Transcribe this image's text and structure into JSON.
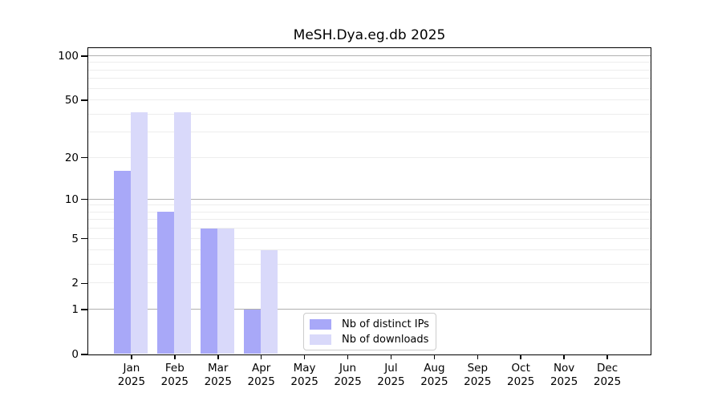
{
  "chart_data": {
    "type": "bar",
    "title": "MeSH.Dya.eg.db 2025",
    "categories": [
      "Jan",
      "Feb",
      "Mar",
      "Apr",
      "May",
      "Jun",
      "Jul",
      "Aug",
      "Sep",
      "Oct",
      "Nov",
      "Dec"
    ],
    "year": "2025",
    "series": [
      {
        "name": "Nb of distinct IPs",
        "color": "#a8a8f8",
        "values": [
          16,
          8,
          6,
          1,
          0,
          0,
          0,
          0,
          0,
          0,
          0,
          0
        ]
      },
      {
        "name": "Nb of downloads",
        "color": "#d9d9fa",
        "values": [
          41,
          41,
          6,
          4,
          0,
          0,
          0,
          0,
          0,
          0,
          0,
          0
        ]
      }
    ],
    "yticks": [
      0,
      1,
      2,
      5,
      10,
      20,
      50,
      100
    ],
    "major_gridlines": [
      1,
      10,
      100
    ],
    "minor_gridlines": [
      2,
      3,
      4,
      5,
      6,
      7,
      8,
      9,
      20,
      30,
      40,
      50,
      60,
      70,
      80,
      90
    ],
    "yscale": "log1p",
    "ylim": [
      0,
      113
    ],
    "grid": true,
    "legend_position": "lower center",
    "colors": {
      "major_grid": "#b0b0b0",
      "minor_grid": "#ededed",
      "spine": "#000000",
      "background": "#ffffff"
    }
  }
}
